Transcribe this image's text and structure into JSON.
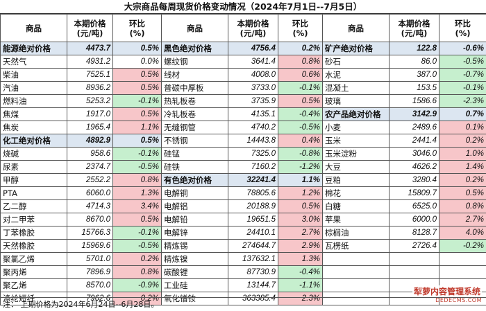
{
  "title": "大宗商品每周现货价格变动情况（2024年7月1日--7月5日）",
  "headers": {
    "commodity": "商品",
    "price_line1": "本期价格",
    "price_line2": "(元/吨)",
    "change_line1": "环比",
    "change_line2": "(%)"
  },
  "rows": [
    [
      {
        "n": "能源绝对价格",
        "p": "4473.7",
        "c": "0.5%",
        "cat": true
      },
      {
        "n": "黑色绝对价格",
        "p": "4756.4",
        "c": "0.2%",
        "cat": true
      },
      {
        "n": "矿产绝对价格",
        "p": "122.8",
        "c": "-0.6%",
        "cat": true
      }
    ],
    [
      {
        "n": "天然气",
        "p": "4931.2",
        "c": "0.0%"
      },
      {
        "n": "螺纹钢",
        "p": "3641.4",
        "c": "0.8%"
      },
      {
        "n": "砂石",
        "p": "86.0",
        "c": "-0.5%"
      }
    ],
    [
      {
        "n": "柴油",
        "p": "7525.1",
        "c": "0.5%"
      },
      {
        "n": "线材",
        "p": "4008.0",
        "c": "0.6%"
      },
      {
        "n": "水泥",
        "p": "387.0",
        "c": "-0.7%"
      }
    ],
    [
      {
        "n": "汽油",
        "p": "8936.2",
        "c": "0.5%"
      },
      {
        "n": "普碳中厚板",
        "p": "3733.0",
        "c": "-0.1%"
      },
      {
        "n": "混凝土",
        "p": "153.5",
        "c": "-0.1%"
      }
    ],
    [
      {
        "n": "燃料油",
        "p": "5253.2",
        "c": "-0.1%"
      },
      {
        "n": "热轧板卷",
        "p": "3735.9",
        "c": "0.5%"
      },
      {
        "n": "玻璃",
        "p": "1586.6",
        "c": "-2.3%"
      }
    ],
    [
      {
        "n": "焦煤",
        "p": "1917.0",
        "c": "0.5%"
      },
      {
        "n": "冷轧板卷",
        "p": "4135.1",
        "c": "-0.4%"
      },
      {
        "n": "农产品绝对价格",
        "p": "3142.9",
        "c": "0.7%",
        "cat": true
      }
    ],
    [
      {
        "n": "焦炭",
        "p": "1965.4",
        "c": "1.1%"
      },
      {
        "n": "无缝钢管",
        "p": "4740.2",
        "c": "-0.5%"
      },
      {
        "n": "小麦",
        "p": "2489.6",
        "c": "0.1%"
      }
    ],
    [
      {
        "n": "化工绝对价格",
        "p": "4892.9",
        "c": "0.5%",
        "cat": true
      },
      {
        "n": "不锈钢",
        "p": "14443.8",
        "c": "0.4%"
      },
      {
        "n": "玉米",
        "p": "2441.4",
        "c": "0.2%"
      }
    ],
    [
      {
        "n": "烧碱",
        "p": "958.6",
        "c": "-0.1%"
      },
      {
        "n": "硅锰",
        "p": "7325.0",
        "c": "-0.8%"
      },
      {
        "n": "玉米淀粉",
        "p": "3046.0",
        "c": "1.0%"
      }
    ],
    [
      {
        "n": "尿素",
        "p": "2374.7",
        "c": "-0.5%"
      },
      {
        "n": "硅铁",
        "p": "7160.2",
        "c": "-1.2%"
      },
      {
        "n": "大豆",
        "p": "4626.2",
        "c": "1.4%"
      }
    ],
    [
      {
        "n": "甲醇",
        "p": "2552.2",
        "c": "0.8%"
      },
      {
        "n": "有色绝对价格",
        "p": "32241.4",
        "c": "1.1%",
        "cat": true
      },
      {
        "n": "豆粕",
        "p": "3280.4",
        "c": "0.2%"
      }
    ],
    [
      {
        "n": "PTA",
        "p": "6060.0",
        "c": "1.3%"
      },
      {
        "n": "电解铜",
        "p": "78805.6",
        "c": "1.2%"
      },
      {
        "n": "棉花",
        "p": "15809.7",
        "c": "0.5%"
      }
    ],
    [
      {
        "n": "乙二醇",
        "p": "4714.3",
        "c": "3.4%"
      },
      {
        "n": "电解铝",
        "p": "20188.9",
        "c": "0.5%"
      },
      {
        "n": "白糖",
        "p": "6525.0",
        "c": "0.8%"
      }
    ],
    [
      {
        "n": "对二甲苯",
        "p": "8670.0",
        "c": "0.5%"
      },
      {
        "n": "电解铅",
        "p": "19651.5",
        "c": "3.0%"
      },
      {
        "n": "苹果",
        "p": "6000.0",
        "c": "2.7%"
      }
    ],
    [
      {
        "n": "丁苯橡胶",
        "p": "15766.3",
        "c": "-0.1%"
      },
      {
        "n": "电解锌",
        "p": "24410.1",
        "c": "2.7%"
      },
      {
        "n": "棕榈油",
        "p": "8128.7",
        "c": "4.0%"
      }
    ],
    [
      {
        "n": "天然橡胶",
        "p": "15969.6",
        "c": "-0.5%"
      },
      {
        "n": "精炼锡",
        "p": "274644.7",
        "c": "2.9%"
      },
      {
        "n": "瓦楞纸",
        "p": "2726.4",
        "c": "-0.2%"
      }
    ],
    [
      {
        "n": "聚氯乙烯",
        "p": "5701.0",
        "c": "0.2%"
      },
      {
        "n": "精炼镍",
        "p": "137632.1",
        "c": "1.3%"
      },
      {
        "n": "",
        "p": "",
        "c": ""
      }
    ],
    [
      {
        "n": "聚丙烯",
        "p": "7896.9",
        "c": "0.8%"
      },
      {
        "n": "碳酸锂",
        "p": "87730.9",
        "c": "-0.4%"
      },
      {
        "n": "",
        "p": "",
        "c": ""
      }
    ],
    [
      {
        "n": "聚乙烯",
        "p": "8570.0",
        "c": "-0.9%"
      },
      {
        "n": "工业硅",
        "p": "13144.7",
        "c": "-1.1%"
      },
      {
        "n": "",
        "p": "",
        "c": ""
      }
    ],
    [
      {
        "n": "涤纶短纤",
        "p": "7962.6",
        "c": "0.2%"
      },
      {
        "n": "氧化镨钕",
        "p": "363385.4",
        "c": "2.3%"
      },
      {
        "n": "",
        "p": "",
        "c": ""
      }
    ]
  ],
  "note": "注：  上期价格为2024年6月24日--6月28日。",
  "watermark": {
    "line1": "犁萝内容管理系统",
    "line2": "DEDECMS.COM"
  }
}
